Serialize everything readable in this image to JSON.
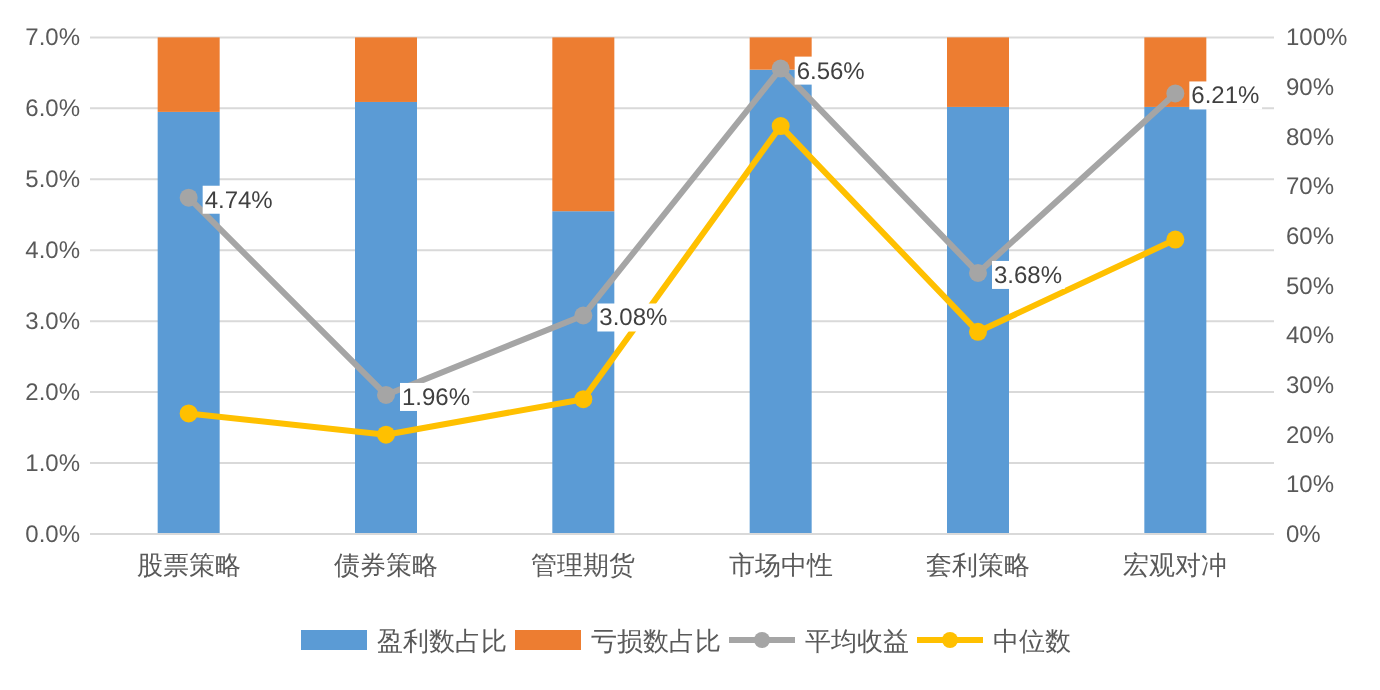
{
  "chart_data": {
    "type": "bar",
    "categories": [
      "股票策略",
      "债券策略",
      "管理期货",
      "市场中性",
      "套利策略",
      "宏观对冲"
    ],
    "stacked": true,
    "grid": "y",
    "legend": "bottom",
    "series": [
      {
        "name": "盈利数占比",
        "type": "bar",
        "axis": "y2",
        "color": "#5b9bd5",
        "values": [
          85,
          87,
          65,
          93.5,
          86,
          86
        ]
      },
      {
        "name": "亏损数占比",
        "type": "bar",
        "axis": "y2",
        "color": "#ed7d31",
        "values": [
          15,
          13,
          35,
          6.5,
          14,
          14
        ]
      },
      {
        "name": "平均收益",
        "type": "line",
        "axis": "y",
        "color": "#a5a5a5",
        "marker": "circle",
        "values": [
          4.74,
          1.96,
          3.08,
          6.56,
          3.68,
          6.21
        ],
        "value_labels": [
          "4.74%",
          "1.96%",
          "3.08%",
          "6.56%",
          "3.68%",
          "6.21%"
        ]
      },
      {
        "name": "中位数",
        "type": "line",
        "axis": "y",
        "color": "#ffc000",
        "marker": "circle",
        "values": [
          1.7,
          1.4,
          1.9,
          5.75,
          2.85,
          4.15
        ]
      }
    ],
    "ylim": [
      0,
      7
    ],
    "yticks": [
      {
        "value": 0,
        "label": "0.0%"
      },
      {
        "value": 1,
        "label": "1.0%"
      },
      {
        "value": 2,
        "label": "2.0%"
      },
      {
        "value": 3,
        "label": "3.0%"
      },
      {
        "value": 4,
        "label": "4.0%"
      },
      {
        "value": 5,
        "label": "5.0%"
      },
      {
        "value": 6,
        "label": "6.0%"
      },
      {
        "value": 7,
        "label": "7.0%"
      }
    ],
    "y2lim": [
      0,
      100
    ],
    "y2ticks": [
      {
        "value": 0,
        "label": "0%"
      },
      {
        "value": 10,
        "label": "10%"
      },
      {
        "value": 20,
        "label": "20%"
      },
      {
        "value": 30,
        "label": "30%"
      },
      {
        "value": 40,
        "label": "40%"
      },
      {
        "value": 50,
        "label": "50%"
      },
      {
        "value": 60,
        "label": "60%"
      },
      {
        "value": 70,
        "label": "70%"
      },
      {
        "value": 80,
        "label": "80%"
      },
      {
        "value": 90,
        "label": "90%"
      },
      {
        "value": 100,
        "label": "100%"
      }
    ]
  }
}
